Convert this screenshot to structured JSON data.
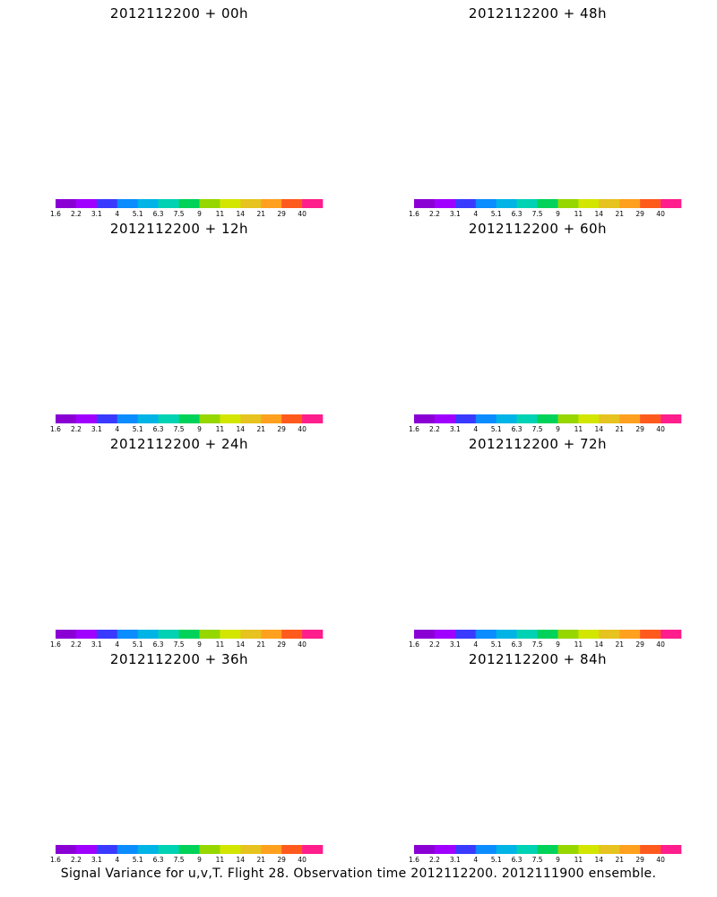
{
  "colorbar": {
    "labels": [
      "1.6",
      "2.2",
      "3.1",
      "4",
      "5.1",
      "6.3",
      "7.5",
      "9",
      "11",
      "14",
      "21",
      "29",
      "40"
    ],
    "colors": [
      "#8a00d4",
      "#a000ff",
      "#3a3aff",
      "#0b8cff",
      "#00b4e6",
      "#00d2b4",
      "#00d25a",
      "#96d700",
      "#d2e600",
      "#e6c31e",
      "#ffa01e",
      "#ff5a1e",
      "#ff1e8c"
    ]
  },
  "panels": [
    {
      "title": "2012112200 + 00h",
      "col": 0,
      "row": 0,
      "level": 0
    },
    {
      "title": "2012112200 + 48h",
      "col": 1,
      "row": 0,
      "level": 4
    },
    {
      "title": "2012112200 + 12h",
      "col": 0,
      "row": 1,
      "level": 1
    },
    {
      "title": "2012112200 + 60h",
      "col": 1,
      "row": 1,
      "level": 5
    },
    {
      "title": "2012112200 + 24h",
      "col": 0,
      "row": 2,
      "level": 2
    },
    {
      "title": "2012112200 + 72h",
      "col": 1,
      "row": 2,
      "level": 6
    },
    {
      "title": "2012112200 + 36h",
      "col": 0,
      "row": 3,
      "level": 3
    },
    {
      "title": "2012112200 + 84h",
      "col": 1,
      "row": 3,
      "level": 7
    }
  ],
  "caption": "Signal Variance for u,v,T. Flight 28. Observation time 2012112200. 2012111900 ensemble."
}
